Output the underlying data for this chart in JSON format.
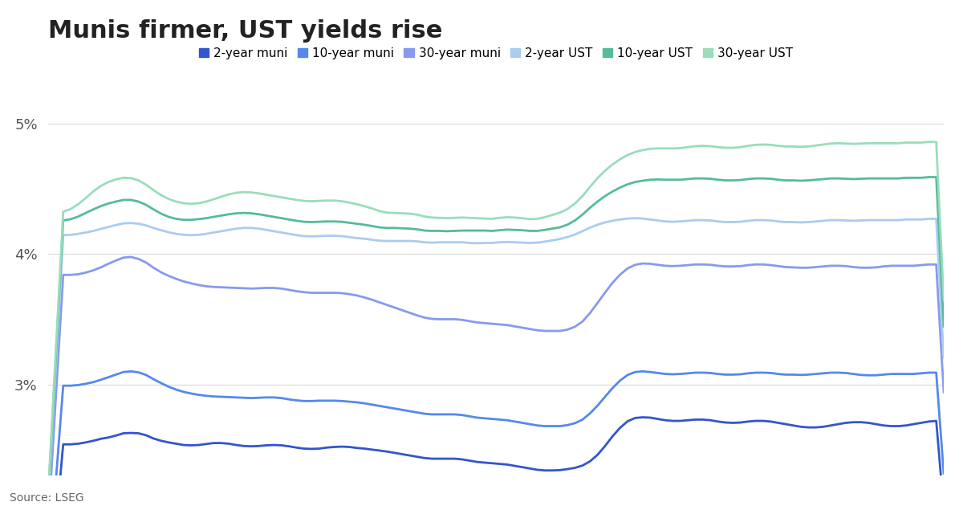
{
  "title": "Munis firmer, UST yields rise",
  "source": "Source: LSEG",
  "ylim": [
    2.3,
    5.25
  ],
  "yticks": [
    3.0,
    4.0,
    5.0
  ],
  "ytick_labels": [
    "3%",
    "4%",
    "5%"
  ],
  "legend_entries": [
    "2-year muni",
    "10-year muni",
    "30-year muni",
    "2-year UST",
    "10-year UST",
    "30-year UST"
  ],
  "colors": {
    "2yr_muni": "#3355cc",
    "10yr_muni": "#5588ee",
    "30yr_muni": "#8899ee",
    "2yr_ust": "#aaccee",
    "10yr_ust": "#55bb99",
    "30yr_ust": "#99ddbb"
  },
  "background_color": "#ffffff",
  "grid_color": "#dddddd",
  "title_fontsize": 22,
  "legend_fontsize": 11,
  "source_fontsize": 10,
  "line_width": 2.0
}
